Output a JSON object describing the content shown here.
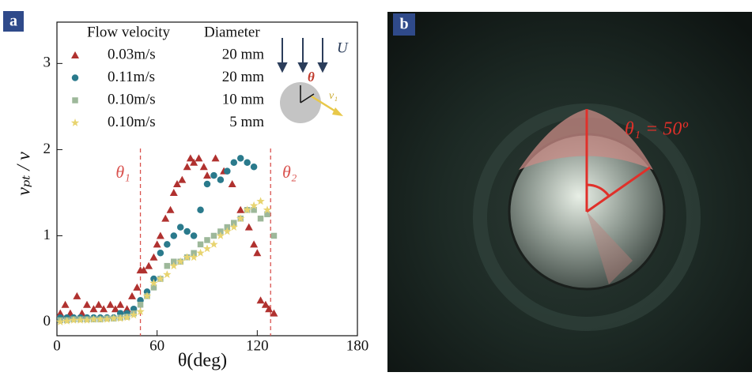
{
  "chart_data": {
    "type": "scatter",
    "panel_label": "a",
    "xlabel": "θ(deg)",
    "ylabel": "vₚₜ / v",
    "xlim": [
      0,
      180
    ],
    "xticks": [
      0,
      60,
      120,
      180
    ],
    "ylim": [
      -0.16,
      3.48
    ],
    "yticks": [
      0,
      1,
      2,
      3
    ],
    "vlines": [
      50,
      128
    ],
    "vline_labels": [
      "θ₁",
      "θ₂"
    ],
    "vline_color": "#d9534f",
    "legend_headers": [
      "Flow velocity",
      "Diameter"
    ],
    "inset": {
      "flow_label": "U",
      "angle_label": "θ",
      "velocity_label": "v₁"
    },
    "series": [
      {
        "name": "0.03m/s",
        "diameter": "20 mm",
        "color": "#b0312f",
        "marker": "triangle",
        "x": [
          2,
          5,
          8,
          12,
          15,
          18,
          22,
          25,
          28,
          32,
          35,
          38,
          42,
          45,
          48,
          50,
          52,
          55,
          58,
          60,
          62,
          65,
          68,
          70,
          72,
          75,
          78,
          80,
          82,
          85,
          88,
          90,
          95,
          100,
          105,
          110,
          115,
          118,
          120,
          122,
          125,
          127,
          130
        ],
        "values": [
          0.1,
          0.2,
          0.1,
          0.3,
          0.1,
          0.2,
          0.15,
          0.2,
          0.15,
          0.2,
          0.15,
          0.2,
          0.15,
          0.3,
          0.4,
          0.6,
          0.6,
          0.65,
          0.75,
          0.9,
          1.0,
          1.2,
          1.3,
          1.5,
          1.6,
          1.65,
          1.8,
          1.9,
          1.85,
          1.9,
          1.8,
          1.7,
          1.9,
          1.75,
          1.6,
          1.3,
          1.1,
          0.9,
          0.8,
          0.25,
          0.2,
          0.15,
          0.1
        ]
      },
      {
        "name": "0.11m/s",
        "diameter": "20 mm",
        "color": "#2a7a8c",
        "marker": "circle",
        "x": [
          2,
          6,
          10,
          14,
          18,
          22,
          26,
          30,
          34,
          38,
          42,
          46,
          50,
          54,
          58,
          62,
          66,
          70,
          74,
          78,
          82,
          86,
          90,
          94,
          98,
          102,
          106,
          110,
          114,
          118
        ],
        "values": [
          0.05,
          0.05,
          0.05,
          0.05,
          0.05,
          0.05,
          0.05,
          0.05,
          0.05,
          0.1,
          0.1,
          0.15,
          0.25,
          0.35,
          0.5,
          0.8,
          0.9,
          1.0,
          1.1,
          1.05,
          1.0,
          1.3,
          1.6,
          1.7,
          1.65,
          1.75,
          1.85,
          1.9,
          1.85,
          1.8
        ]
      },
      {
        "name": "0.10m/s",
        "diameter": "10 mm",
        "color": "#9db89a",
        "marker": "square",
        "x": [
          2,
          6,
          10,
          14,
          18,
          22,
          26,
          30,
          34,
          38,
          42,
          46,
          50,
          54,
          58,
          62,
          66,
          70,
          74,
          78,
          82,
          86,
          90,
          94,
          98,
          102,
          106,
          110,
          114,
          118,
          122,
          126,
          130
        ],
        "values": [
          0.02,
          0.02,
          0.03,
          0.03,
          0.03,
          0.03,
          0.03,
          0.04,
          0.04,
          0.05,
          0.06,
          0.1,
          0.2,
          0.3,
          0.4,
          0.5,
          0.65,
          0.7,
          0.7,
          0.75,
          0.8,
          0.9,
          0.95,
          1.0,
          1.05,
          1.1,
          1.15,
          1.2,
          1.3,
          1.3,
          1.2,
          1.25,
          1.0
        ]
      },
      {
        "name": "0.10m/s",
        "diameter": "5 mm",
        "color": "#e8d470",
        "marker": "star",
        "x": [
          2,
          6,
          10,
          14,
          18,
          22,
          26,
          30,
          34,
          38,
          42,
          46,
          50,
          54,
          58,
          62,
          66,
          70,
          74,
          78,
          82,
          86,
          90,
          94,
          98,
          102,
          106,
          110,
          114,
          118,
          122,
          126
        ],
        "values": [
          0.0,
          0.01,
          0.02,
          0.02,
          0.02,
          0.03,
          0.03,
          0.03,
          0.04,
          0.04,
          0.05,
          0.08,
          0.12,
          0.3,
          0.45,
          0.5,
          0.55,
          0.65,
          0.7,
          0.75,
          0.75,
          0.8,
          0.85,
          0.9,
          1.0,
          1.05,
          1.1,
          1.2,
          1.3,
          1.35,
          1.4,
          1.3
        ]
      }
    ]
  },
  "panel_b": {
    "panel_label": "b",
    "annotation": "θ₁ = 50º"
  }
}
